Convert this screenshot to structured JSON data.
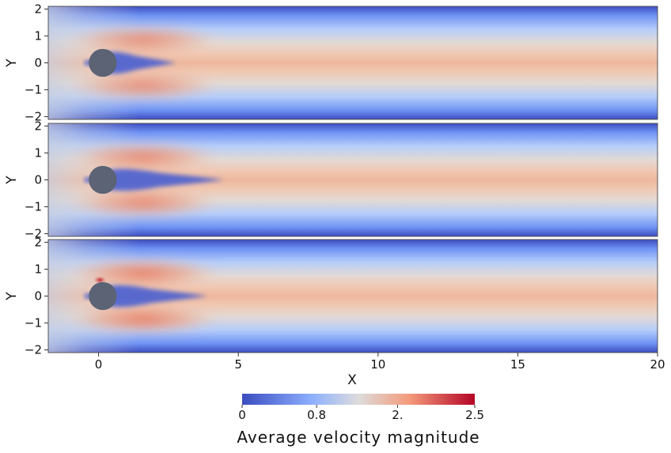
{
  "figure": {
    "x_label": "X",
    "y_label": "Y",
    "x_ticks": [
      {
        "value": 0,
        "label": "0"
      },
      {
        "value": 5,
        "label": "5"
      },
      {
        "value": 10,
        "label": "10"
      },
      {
        "value": 15,
        "label": "15"
      },
      {
        "value": 20,
        "label": "20"
      }
    ],
    "y_ticks": [
      {
        "value": 2,
        "label": "2"
      },
      {
        "value": 1,
        "label": "1"
      },
      {
        "value": 0,
        "label": "0"
      },
      {
        "value": -1,
        "label": "−1"
      },
      {
        "value": -2,
        "label": "−2"
      }
    ],
    "x_range": [
      -1.8,
      20
    ],
    "y_range": [
      -2.1,
      2.1
    ],
    "panel_count": 3,
    "cylinder_color": "#5b6374"
  },
  "colorbar": {
    "title": "Average velocity magnitude",
    "range": [
      0,
      2.5
    ],
    "ticks": [
      {
        "value": 0,
        "label": "0"
      },
      {
        "value": 0.8,
        "label": "0.8"
      },
      {
        "value": 1.67,
        "label": "2."
      },
      {
        "value": 2.5,
        "label": "2.5"
      }
    ],
    "colors": [
      "#3b4cc0",
      "#8db0fe",
      "#dddcdc",
      "#f49a7b",
      "#b40426"
    ]
  }
}
